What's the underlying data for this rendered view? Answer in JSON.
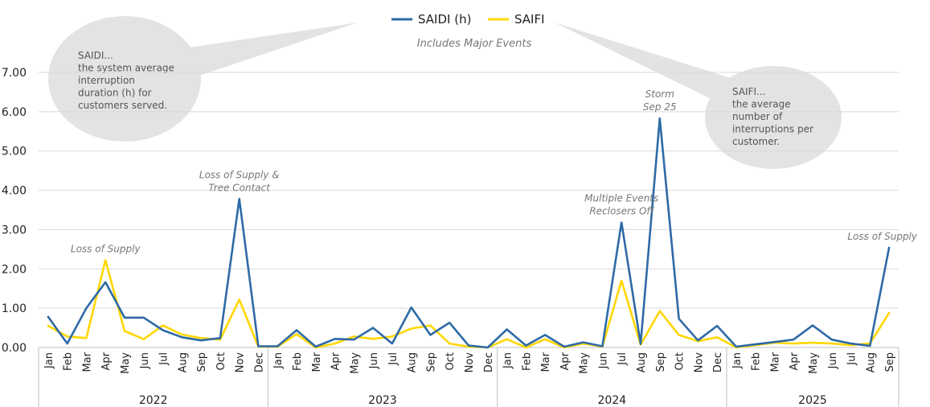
{
  "chart_data": {
    "type": "line",
    "subtitle": "Includes Major Events",
    "ylim": [
      0,
      7
    ],
    "yticks": [
      "0.00",
      "1.00",
      "2.00",
      "3.00",
      "4.00",
      "5.00",
      "6.00",
      "7.00"
    ],
    "grid": true,
    "legend_position": "top-center",
    "years": [
      {
        "label": "2022",
        "months": 12
      },
      {
        "label": "2023",
        "months": 12
      },
      {
        "label": "2024",
        "months": 12
      },
      {
        "label": "2025",
        "months": 9
      }
    ],
    "categories": [
      "Jan",
      "Feb",
      "Mar",
      "Apr",
      "May",
      "Jun",
      "Jul",
      "Aug",
      "Sep",
      "Oct",
      "Nov",
      "Dec",
      "Jan",
      "Feb",
      "Mar",
      "Apr",
      "May",
      "Jun",
      "Jul",
      "Aug",
      "Sep",
      "Oct",
      "Nov",
      "Dec",
      "Jan",
      "Feb",
      "Mar",
      "Apr",
      "May",
      "Jun",
      "Jul",
      "Aug",
      "Sep",
      "Oct",
      "Nov",
      "Dec",
      "Jan",
      "Feb",
      "Mar",
      "Apr",
      "May",
      "Jun",
      "Jul",
      "Aug",
      "Sep"
    ],
    "series": [
      {
        "name": "SAIDI (h)",
        "color": "#2e6aa6",
        "values": [
          0.78,
          0.1,
          1.0,
          1.66,
          0.76,
          0.76,
          0.44,
          0.26,
          0.18,
          0.24,
          3.78,
          0.03,
          0.03,
          0.44,
          0.02,
          0.22,
          0.2,
          0.5,
          0.1,
          1.02,
          0.32,
          0.63,
          0.05,
          0.0,
          0.46,
          0.05,
          0.32,
          0.02,
          0.13,
          0.03,
          3.18,
          0.09,
          5.83,
          0.73,
          0.18,
          0.55,
          0.02,
          0.08,
          0.14,
          0.2,
          0.56,
          0.2,
          0.1,
          0.04,
          2.54
        ]
      },
      {
        "name": "SAIFI",
        "color": "#ffd700",
        "values": [
          0.55,
          0.28,
          0.24,
          2.22,
          0.42,
          0.21,
          0.56,
          0.33,
          0.24,
          0.2,
          1.22,
          0.02,
          0.02,
          0.34,
          0.0,
          0.1,
          0.28,
          0.22,
          0.28,
          0.48,
          0.56,
          0.1,
          0.02,
          0.0,
          0.21,
          0.0,
          0.21,
          0.0,
          0.1,
          0.02,
          1.7,
          0.07,
          0.93,
          0.32,
          0.16,
          0.26,
          0.0,
          0.06,
          0.12,
          0.1,
          0.12,
          0.1,
          0.06,
          0.1,
          0.88
        ]
      }
    ],
    "annotations": [
      {
        "lines": [
          "Loss of Supply"
        ],
        "index": 3
      },
      {
        "lines": [
          "Loss of Supply  &",
          "Tree Contact"
        ],
        "index": 10
      },
      {
        "lines": [
          "Multiple  Events",
          "Reclosers Off"
        ],
        "index": 30
      },
      {
        "lines": [
          "Storm",
          "Sep 25"
        ],
        "index": 32
      },
      {
        "lines": [
          "Loss of Supply"
        ],
        "index": 44
      }
    ],
    "callouts": [
      {
        "lines": [
          "SAIDI...",
          "the system average",
          "interruption",
          "duration (h) for",
          "customers served."
        ]
      },
      {
        "lines": [
          "SAIFI...",
          "the average",
          "number of",
          "interruptions per",
          "customer."
        ]
      }
    ]
  }
}
